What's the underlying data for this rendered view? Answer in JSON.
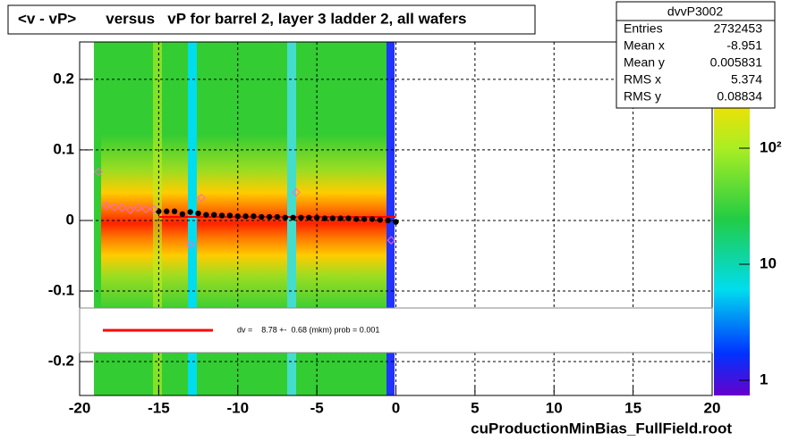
{
  "chart_data": {
    "type": "profile",
    "title": "<v - vP>       versus   vP for barrel 2, layer 3 ladder 2, all wafers",
    "x_label": "cuProductionMinBias_FullField.root",
    "xlim": [
      -20,
      20
    ],
    "xticks": [
      -20,
      -15,
      -10,
      -5,
      0,
      5,
      10,
      15,
      20
    ],
    "ylim": [
      -0.248,
      0.253
    ],
    "yticks": [
      -0.2,
      -0.1,
      0,
      0.1,
      0.2
    ],
    "zlog": true,
    "zlim": [
      0.74,
      823
    ],
    "zticks": [
      1,
      10,
      {
        "value": 100,
        "label": "10²"
      }
    ],
    "grid": true,
    "series": [
      {
        "color": "#000000",
        "marker": "circle",
        "x": [
          -15,
          -14.5,
          -14,
          -13.5,
          -13,
          -12.5,
          -12,
          -11.5,
          -11,
          -10.5,
          -10,
          -9.5,
          -9,
          -8.5,
          -8,
          -7.5,
          -7,
          -6.5,
          -6,
          -5.5,
          -5,
          -4.5,
          -4,
          -3.5,
          -3,
          -2.5,
          -2,
          -1.5,
          -1,
          -0.5,
          0
        ],
        "values": [
          0.013,
          0.013,
          0.013,
          0.009,
          0.012,
          0.01,
          0.008,
          0.008,
          0.007,
          0.007,
          0.006,
          0.006,
          0.006,
          0.005,
          0.005,
          0.005,
          0.004,
          0.004,
          0.004,
          0.004,
          0.004,
          0.003,
          0.003,
          0.003,
          0.003,
          0.002,
          0.002,
          0.002,
          0.001,
          0,
          -0.002
        ]
      },
      {
        "color": "#ff66cc",
        "marker": "diamond",
        "x": [
          -18.8,
          -18.3,
          -17.8,
          -17.3,
          -16.8,
          -16.3,
          -15.8,
          -15.3,
          -13,
          -12.3,
          -6.3,
          -0.3
        ],
        "values": [
          0.069,
          0.021,
          0.019,
          0.018,
          0.015,
          0.018,
          0.016,
          0.016,
          -0.034,
          0.032,
          0.04,
          -0.028
        ]
      }
    ],
    "fit_line": {
      "color": "#ff0000",
      "x": [
        -15,
        0
      ],
      "values": [
        0.005,
        0.005
      ]
    },
    "fit_legend": "dv =    8.78 +-  0.68 (mkm) prob = 0.001",
    "stats": {
      "title": "dvvP3002",
      "rows": [
        {
          "label": "Entries",
          "value": 2732453
        },
        {
          "label": "Mean x",
          "value": -8.951
        },
        {
          "label": "Mean y",
          "value": 0.005831
        },
        {
          "label": "RMS x",
          "value": 5.374
        },
        {
          "label": "RMS y",
          "value": 0.08834
        }
      ]
    }
  }
}
